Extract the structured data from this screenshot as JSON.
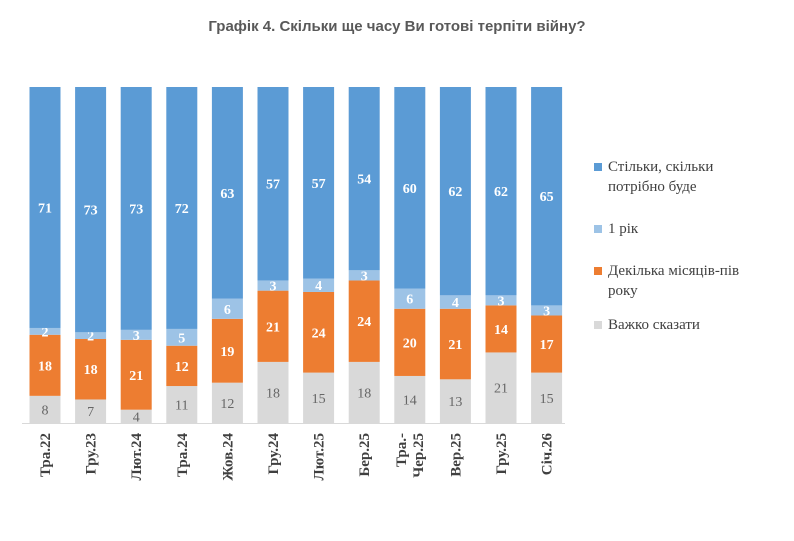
{
  "title": "Графік 4. Скільки ще часу Ви готові терпіти війну?",
  "chart_data": {
    "type": "bar",
    "stacked": true,
    "categories": [
      "Тра.22",
      "Гру.23",
      "Лют.24",
      "Тра.24",
      "Жов.24",
      "Гру.24",
      "Лют.25",
      "Бер.25",
      "Тра.-Чер.25",
      "Вер.25",
      "Гру.25",
      "Січ.26"
    ],
    "series": [
      {
        "name": "Важко сказати",
        "color": "#d9d9d9",
        "label_color": "#666666",
        "values": [
          8,
          7,
          4,
          11,
          12,
          18,
          15,
          18,
          14,
          13,
          21,
          15
        ]
      },
      {
        "name": "Декілька місяців-пів року",
        "color": "#ed7d31",
        "label_color": "#ffffff",
        "values": [
          18,
          18,
          21,
          12,
          19,
          21,
          24,
          24,
          20,
          21,
          14,
          17
        ]
      },
      {
        "name": "1 рік",
        "color": "#9dc3e6",
        "label_color": "#ffffff",
        "values": [
          2,
          2,
          3,
          5,
          6,
          3,
          4,
          3,
          6,
          4,
          3,
          3
        ]
      },
      {
        "name": "Стільки, скільки потрібно буде",
        "color": "#5b9bd5",
        "label_color": "#ffffff",
        "values": [
          71,
          73,
          73,
          72,
          63,
          57,
          57,
          54,
          60,
          62,
          62,
          65
        ]
      }
    ],
    "legend": {
      "position": "right",
      "items": [
        {
          "label_lines": [
            "Стільки, скільки",
            "потрібно буде"
          ],
          "color": "#5b9bd5"
        },
        {
          "label_lines": [
            "1 рік"
          ],
          "color": "#9dc3e6"
        },
        {
          "label_lines": [
            "Декілька місяців-пів",
            "року"
          ],
          "color": "#ed7d31"
        },
        {
          "label_lines": [
            "Важко сказати"
          ],
          "color": "#d9d9d9"
        }
      ]
    },
    "ylim": [
      0,
      100
    ],
    "grid": false,
    "axis_line_color": "#d9d9d9"
  }
}
